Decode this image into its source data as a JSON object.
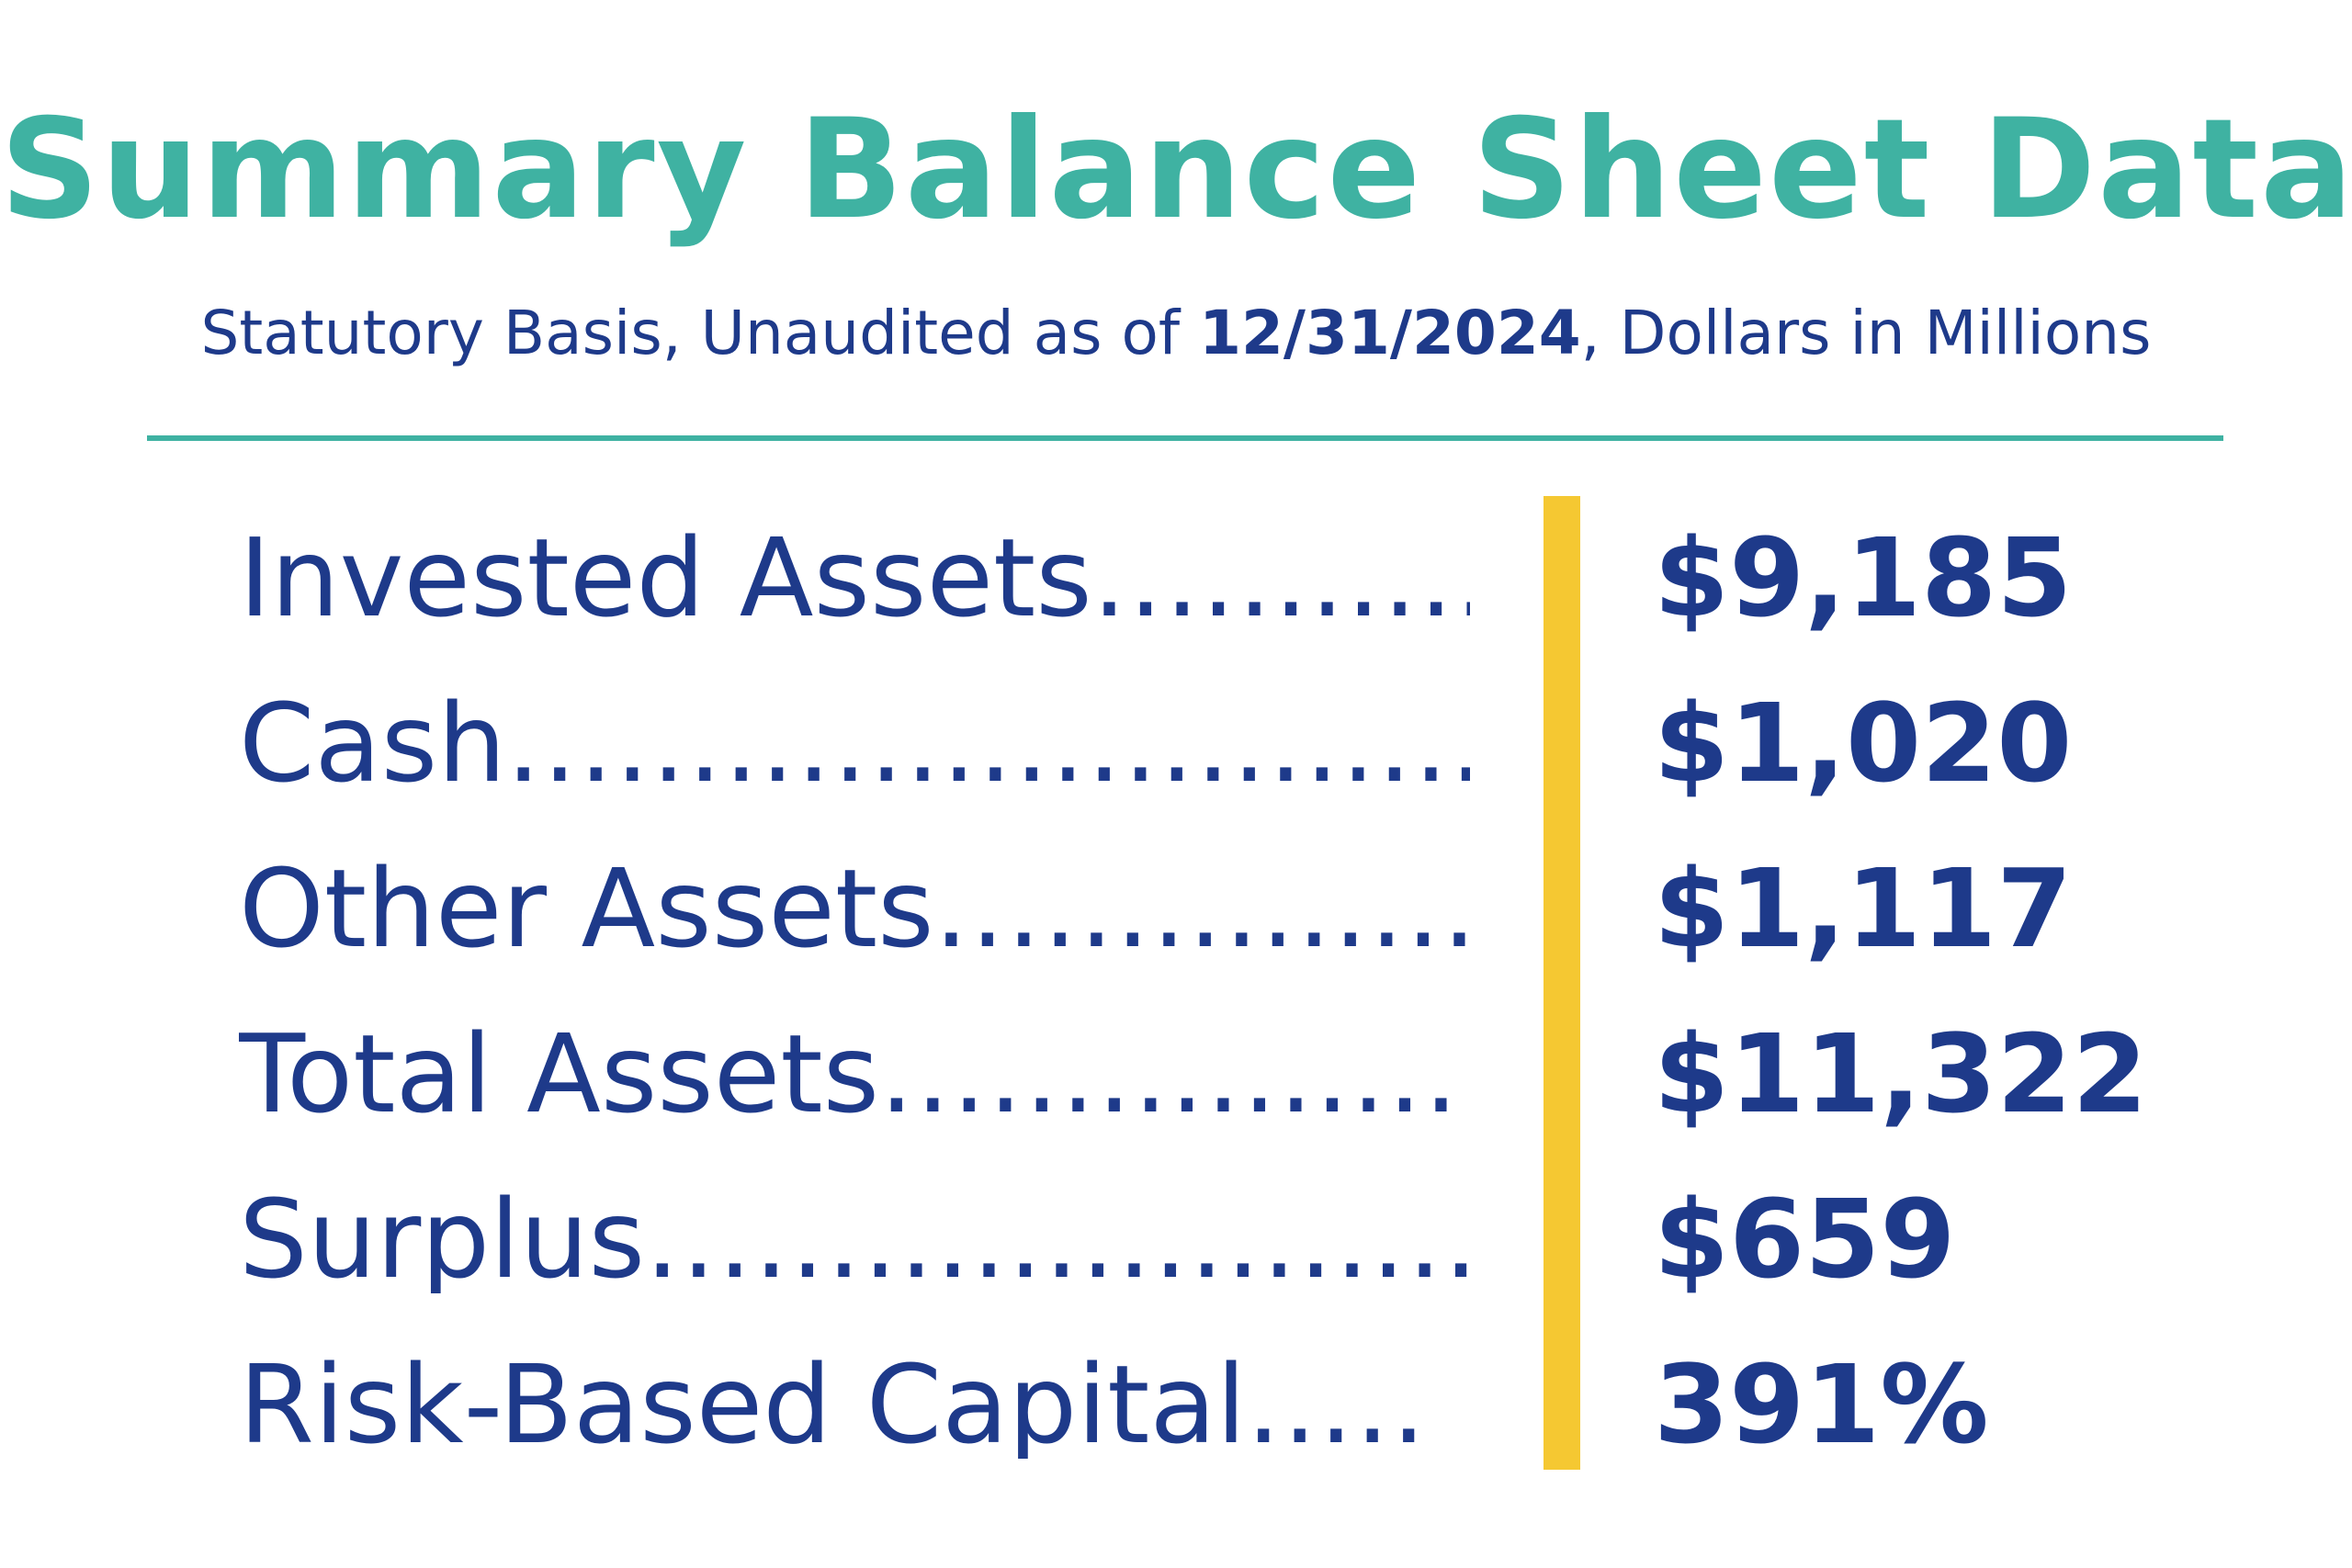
{
  "header": {
    "title": "Summary Balance Sheet Data",
    "subtitle_before": "Statutory Basis, Unaudited as of ",
    "subtitle_date": "12/31/2024",
    "subtitle_after": ", Dollars in Millions"
  },
  "colors": {
    "title": "#3fb2a2",
    "text": "#1e3a8a",
    "divider": "#3fb2a2",
    "accent_bar": "#f5c832"
  },
  "rows": [
    {
      "label": "Invested Assets",
      "dots": "..............",
      "value": "$9,185"
    },
    {
      "label": "Cash",
      "dots": "...................................",
      "value": "$1,020"
    },
    {
      "label": "Other Assets",
      "dots": "....................",
      "value": "$1,117"
    },
    {
      "label": "Total Assets",
      "dots": "....................",
      "value": "$11,322"
    },
    {
      "label": "Surplus",
      "dots": "..............................",
      "value": "$659"
    },
    {
      "label": "Risk-Based Capital",
      "dots": ".....",
      "value": "391%"
    }
  ]
}
